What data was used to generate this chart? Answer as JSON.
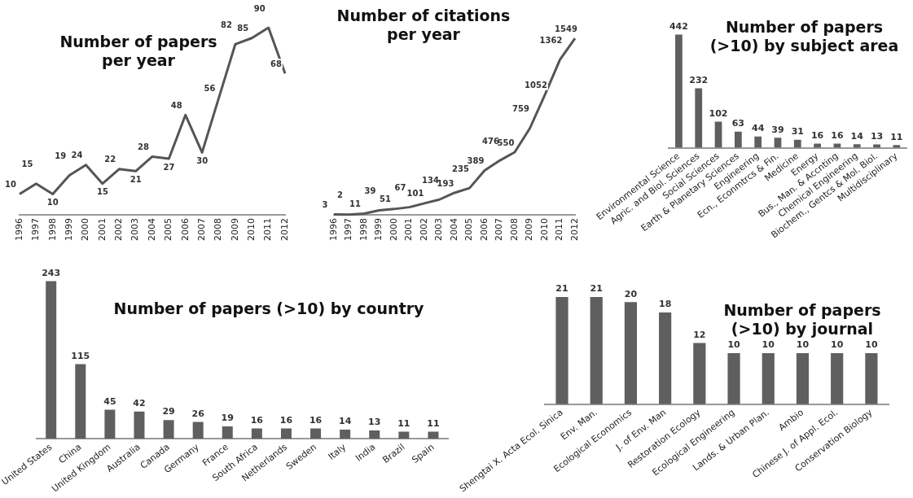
{
  "chart_data": [
    {
      "type": "line",
      "title": "Number of papers\nper year",
      "categories": [
        "1996",
        "1997",
        "1998",
        "1999",
        "2000",
        "2001",
        "2002",
        "2003",
        "2004",
        "2005",
        "2006",
        "2007",
        "2008",
        "2009",
        "2010",
        "2011",
        "2012"
      ],
      "values": [
        10,
        15,
        10,
        19,
        24,
        15,
        22,
        21,
        28,
        27,
        48,
        30,
        56,
        82,
        85,
        90,
        68
      ],
      "color": "#555555",
      "data_labels": true,
      "tick_labels": "x",
      "grid": false,
      "legend": false,
      "marker": "none"
    },
    {
      "type": "line",
      "title": "Number of citations\nper year",
      "categories": [
        "1996",
        "1997",
        "1998",
        "1999",
        "2000",
        "2001",
        "2002",
        "2003",
        "2004",
        "2005",
        "2006",
        "2007",
        "2008",
        "2009",
        "2010",
        "2011",
        "2012"
      ],
      "values": [
        3,
        2,
        11,
        39,
        51,
        67,
        101,
        134,
        193,
        235,
        389,
        476,
        550,
        759,
        1052,
        1362,
        1549
      ],
      "color": "#555555",
      "data_labels": true,
      "tick_labels": "x",
      "grid": false,
      "legend": false,
      "marker": "none"
    },
    {
      "type": "bar",
      "title": "Number of papers\n(>10) by subject area",
      "categories": [
        "Environmental Science",
        "Agric. and Biol. Sciences",
        "Social Sciences",
        "Earth & Planetary Sciences",
        "Engineering",
        "Ecn., Econmtrcs & Fin.",
        "Medicine",
        "Energy",
        "Bus., Man. & Accnting",
        "Chemical Engineering",
        "Biochem., Gentcs & Mol. Biol.",
        "Multidisciplinary"
      ],
      "values": [
        442,
        232,
        102,
        63,
        44,
        39,
        31,
        16,
        16,
        14,
        13,
        11
      ],
      "color": "#5f5f5f",
      "data_labels": true,
      "tick_labels": "x",
      "grid": false,
      "legend": false
    },
    {
      "type": "bar",
      "title": "Number of papers (>10) by country",
      "categories": [
        "United States",
        "China",
        "United Kingdom",
        "Australia",
        "Canada",
        "Germany",
        "France",
        "South Africa",
        "Netherlands",
        "Sweden",
        "Italy",
        "India",
        "Brazil",
        "Spain"
      ],
      "values": [
        243,
        115,
        45,
        42,
        29,
        26,
        19,
        16,
        16,
        16,
        14,
        13,
        11,
        11
      ],
      "color": "#5f5f5f",
      "data_labels": true,
      "tick_labels": "x",
      "grid": false,
      "legend": false
    },
    {
      "type": "bar",
      "title": "Number of papers\n(>10) by journal",
      "categories": [
        "Shengtai X. Acta Ecol. Sinica",
        "Env. Man.",
        "Ecological Economics",
        "J. of Env. Man",
        "Restoration Ecology",
        "Ecological Engineering",
        "Lands. & Urban Plan.",
        "Ambio",
        "Chinese J. of Appl. Ecol.",
        "Conservation Biology"
      ],
      "values": [
        21,
        21,
        20,
        18,
        12,
        10,
        10,
        10,
        10,
        10
      ],
      "color": "#5f5f5f",
      "data_labels": true,
      "tick_labels": "x",
      "grid": false,
      "legend": false
    }
  ]
}
